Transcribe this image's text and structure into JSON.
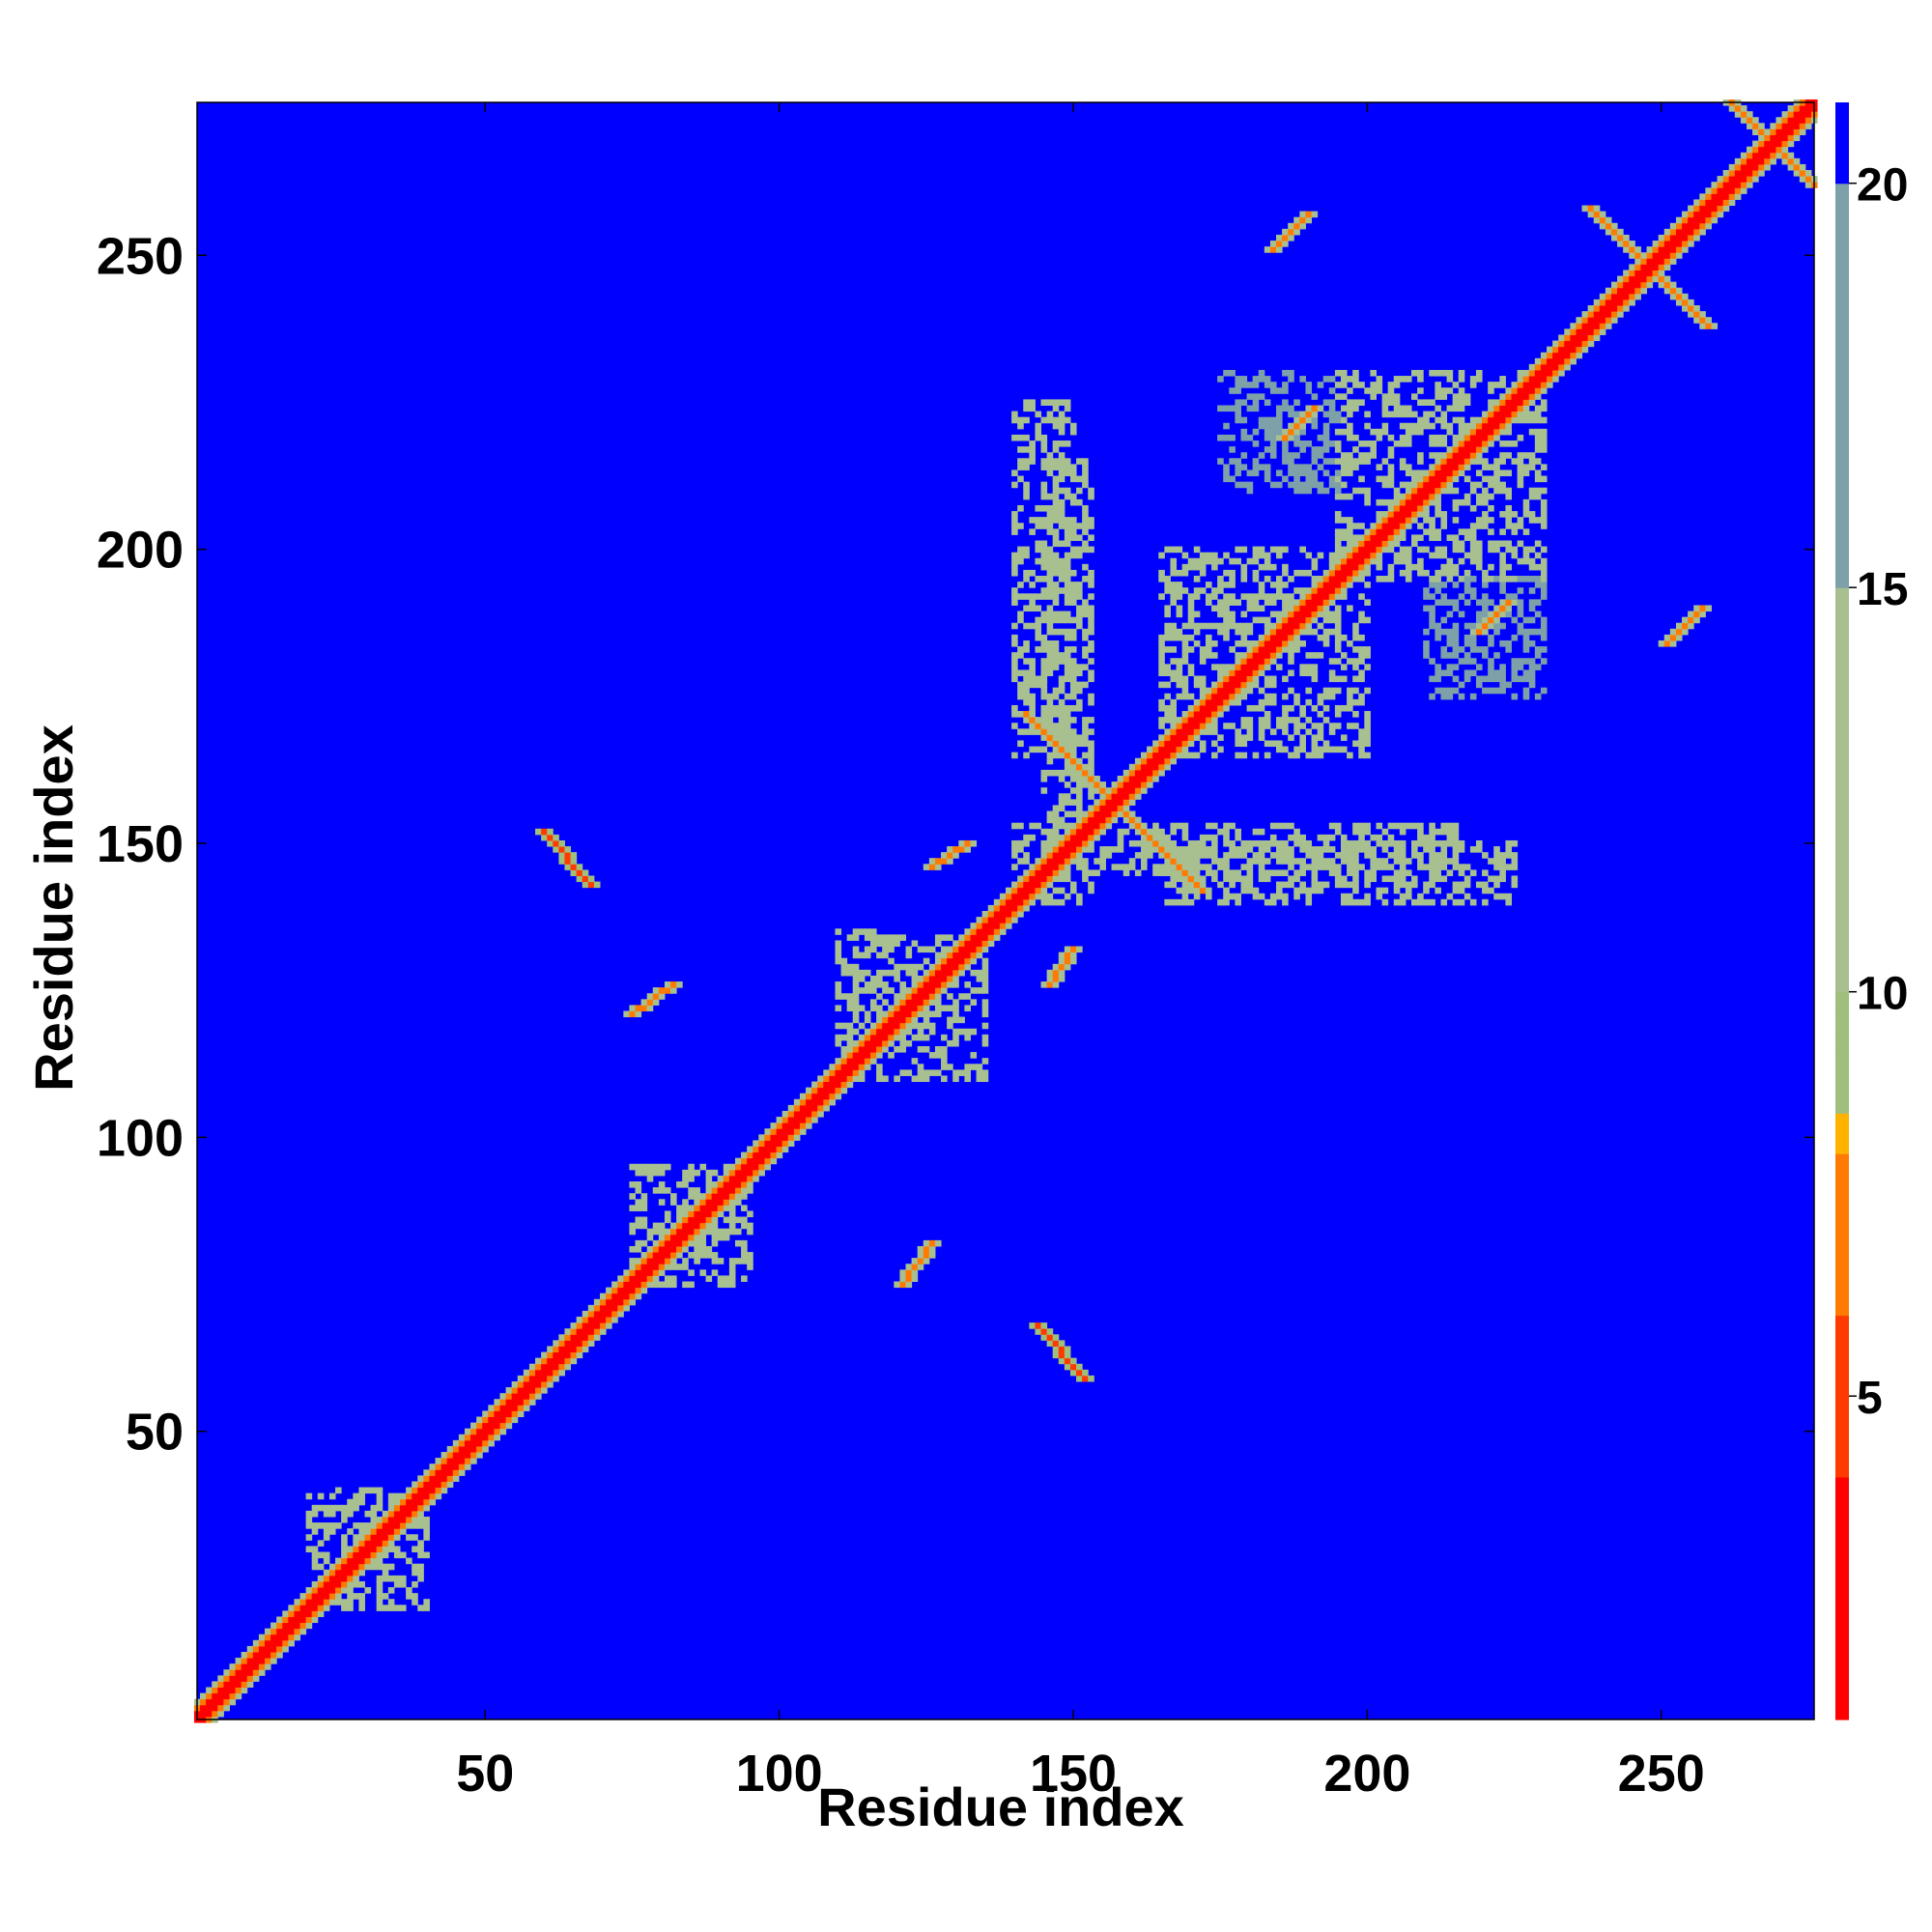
{
  "chart_data": {
    "type": "heatmap",
    "title": "",
    "xlabel": "Residue index",
    "ylabel": "Residue index",
    "xlim": [
      1,
      276
    ],
    "ylim": [
      1,
      276
    ],
    "x_ticks": [
      50,
      100,
      150,
      200,
      250
    ],
    "y_ticks": [
      50,
      100,
      150,
      200,
      250
    ],
    "colorbar": {
      "ticks": [
        5,
        10,
        15,
        20
      ],
      "range": [
        1,
        21
      ],
      "stops": [
        {
          "value": 1,
          "color": "#ff0000"
        },
        {
          "value": 4,
          "color": "#ff3a00"
        },
        {
          "value": 6,
          "color": "#ff7a00"
        },
        {
          "value": 8,
          "color": "#ffb300"
        },
        {
          "value": 8.5,
          "color": "#9fbf7a"
        },
        {
          "value": 10,
          "color": "#a8c090"
        },
        {
          "value": 15,
          "color": "#7ea0a8"
        },
        {
          "value": 20,
          "color": "#5a88b4"
        },
        {
          "value": 20.01,
          "color": "#0000ff"
        },
        {
          "value": 21,
          "color": "#0000ff"
        }
      ]
    },
    "background_value": 21,
    "matrix_symmetric": true,
    "diagonal": {
      "start": 1,
      "end": 276,
      "core_value": 1,
      "band_width": 3
    },
    "contact_regions": [
      {
        "x": [
          60,
          68
        ],
        "y": [
          143,
          152
        ],
        "value": 5,
        "orientation": "anti"
      },
      {
        "x": [
          144,
          152
        ],
        "y": [
          59,
          68
        ],
        "value": 5,
        "orientation": "anti"
      },
      {
        "x": [
          142,
          172
        ],
        "y": [
          142,
          172
        ],
        "value": 6,
        "orientation": "anti"
      },
      {
        "x": [
          238,
          258
        ],
        "y": [
          238,
          258
        ],
        "value": 6,
        "orientation": "anti"
      },
      {
        "x": [
          262,
          276
        ],
        "y": [
          262,
          276
        ],
        "value": 6,
        "orientation": "anti"
      },
      {
        "x": [
          184,
          190
        ],
        "y": [
          251,
          257
        ],
        "value": 6,
        "orientation": "parallel"
      },
      {
        "x": [
          251,
          257
        ],
        "y": [
          184,
          190
        ],
        "value": 6,
        "orientation": "parallel"
      },
      {
        "x": [
          126,
          132
        ],
        "y": [
          146,
          150
        ],
        "value": 6,
        "orientation": "parallel"
      },
      {
        "x": [
          146,
          150
        ],
        "y": [
          126,
          132
        ],
        "value": 6,
        "orientation": "parallel"
      },
      {
        "x": [
          219,
          224
        ],
        "y": [
          186,
          191
        ],
        "value": 7,
        "orientation": "parallel"
      },
      {
        "x": [
          186,
          191
        ],
        "y": [
          219,
          224
        ],
        "value": 7,
        "orientation": "parallel"
      },
      {
        "x": [
          121,
          126
        ],
        "y": [
          75,
          82
        ],
        "value": 7,
        "orientation": "parallel"
      },
      {
        "x": [
          75,
          82
        ],
        "y": [
          121,
          126
        ],
        "value": 7,
        "orientation": "parallel"
      }
    ],
    "halo_regions": [
      {
        "x": [
          75,
          95
        ],
        "y": [
          75,
          95
        ],
        "value": 11
      },
      {
        "x": [
          110,
          135
        ],
        "y": [
          110,
          135
        ],
        "value": 11
      },
      {
        "x": [
          165,
          200
        ],
        "y": [
          165,
          200
        ],
        "value": 12
      },
      {
        "x": [
          195,
          230
        ],
        "y": [
          195,
          230
        ],
        "value": 12
      },
      {
        "x": [
          140,
          215
        ],
        "y": [
          145,
          153
        ],
        "value": 13
      },
      {
        "x": [
          145,
          153
        ],
        "y": [
          140,
          215
        ],
        "value": 13
      },
      {
        "x": [
          140,
          150
        ],
        "y": [
          165,
          225
        ],
        "value": 14
      },
      {
        "x": [
          165,
          225
        ],
        "y": [
          140,
          150
        ],
        "value": 14
      },
      {
        "x": [
          175,
          195
        ],
        "y": [
          210,
          230
        ],
        "value": 15
      },
      {
        "x": [
          210,
          230
        ],
        "y": [
          175,
          195
        ],
        "value": 15
      },
      {
        "x": [
          20,
          40
        ],
        "y": [
          20,
          40
        ],
        "value": 12
      }
    ]
  }
}
